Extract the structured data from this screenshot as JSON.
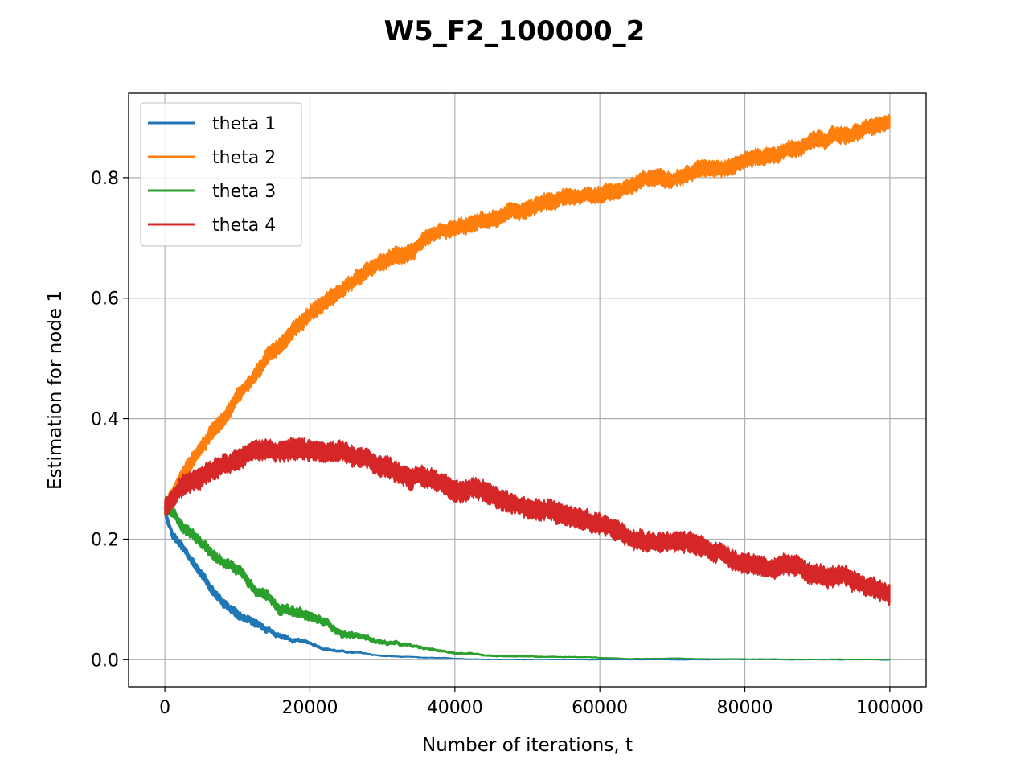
{
  "chart_data": {
    "type": "line",
    "title": "W5_F2_100000_2",
    "xlabel": "Number of iterations, t",
    "ylabel": "Estimation for node 1",
    "xlim": [
      -5000,
      105000
    ],
    "ylim": [
      -0.045,
      0.94
    ],
    "xticks": [
      0,
      20000,
      40000,
      60000,
      80000,
      100000
    ],
    "xtick_labels": [
      "0",
      "20000",
      "40000",
      "60000",
      "80000",
      "100000"
    ],
    "yticks": [
      0.0,
      0.2,
      0.4,
      0.6,
      0.8
    ],
    "ytick_labels": [
      "0.0",
      "0.2",
      "0.4",
      "0.6",
      "0.8"
    ],
    "grid": true,
    "legend_position": "upper left",
    "x": [
      0,
      1000,
      2000,
      3000,
      4000,
      6000,
      8000,
      10000,
      12000,
      14000,
      16000,
      18000,
      20000,
      25000,
      30000,
      35000,
      40000,
      45000,
      50000,
      55000,
      60000,
      65000,
      70000,
      75000,
      80000,
      85000,
      90000,
      95000,
      100000
    ],
    "series": [
      {
        "name": "theta 1",
        "color": "#1f77b4",
        "band": 0.012,
        "values": [
          0.245,
          0.205,
          0.19,
          0.17,
          0.155,
          0.125,
          0.095,
          0.08,
          0.065,
          0.05,
          0.04,
          0.03,
          0.025,
          0.013,
          0.006,
          0.003,
          0.0015,
          0.0008,
          0.0005,
          0.0003,
          0.0002,
          0.0001,
          0.0001,
          0.0,
          0.0,
          0.0,
          0.0,
          0.0,
          0.0
        ]
      },
      {
        "name": "theta 2",
        "color": "#ff7f0e",
        "band": 0.022,
        "values": [
          0.25,
          0.27,
          0.295,
          0.315,
          0.335,
          0.37,
          0.405,
          0.44,
          0.47,
          0.5,
          0.53,
          0.555,
          0.58,
          0.62,
          0.655,
          0.685,
          0.705,
          0.725,
          0.745,
          0.76,
          0.775,
          0.79,
          0.805,
          0.82,
          0.835,
          0.845,
          0.86,
          0.875,
          0.888
        ]
      },
      {
        "name": "theta 3",
        "color": "#2ca02c",
        "band": 0.014,
        "values": [
          0.25,
          0.24,
          0.225,
          0.215,
          0.205,
          0.19,
          0.165,
          0.155,
          0.13,
          0.115,
          0.095,
          0.08,
          0.07,
          0.045,
          0.03,
          0.018,
          0.012,
          0.008,
          0.006,
          0.004,
          0.003,
          0.002,
          0.002,
          0.001,
          0.001,
          0.001,
          0.0005,
          0.0005,
          0.0
        ]
      },
      {
        "name": "theta 4",
        "color": "#d62728",
        "band": 0.028,
        "values": [
          0.25,
          0.265,
          0.28,
          0.29,
          0.3,
          0.32,
          0.335,
          0.345,
          0.35,
          0.352,
          0.352,
          0.35,
          0.347,
          0.335,
          0.32,
          0.305,
          0.29,
          0.275,
          0.255,
          0.24,
          0.225,
          0.21,
          0.2,
          0.185,
          0.165,
          0.155,
          0.14,
          0.125,
          0.11
        ]
      }
    ]
  }
}
